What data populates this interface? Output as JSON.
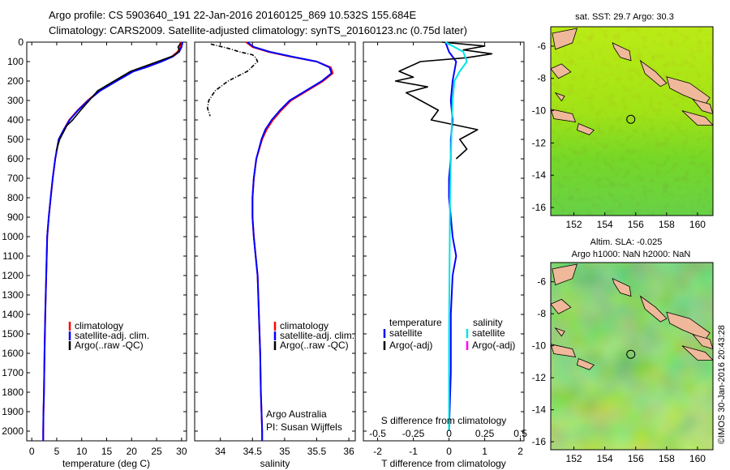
{
  "header": {
    "title_line1": "Argo profile: CS 5903640_191 22-Jan-2016 20160125_869 10.532S 155.684E",
    "title_line2": "Climatology: CARS2009. Satellite-adjusted climatology: synTS_20160123.nc (0.75d later)"
  },
  "credit": "©IMOS 30-Jan-2016 20:43:28",
  "colors": {
    "climatology": "#ff0000",
    "satellite": "#0000ff",
    "argo": "#000000",
    "salinity_satellite": "#00e5e5",
    "salinity_argo": "#ff00ff",
    "land": "#f0b89a"
  },
  "chart_data": [
    {
      "type": "line",
      "name": "temperature-profile",
      "xlabel": "temperature (deg C)",
      "ylabel": "",
      "xlim": [
        -1,
        31
      ],
      "ylim": [
        2050,
        0
      ],
      "xticks": [
        0,
        5,
        10,
        15,
        20,
        25,
        30
      ],
      "yticks": [
        0,
        100,
        200,
        300,
        400,
        500,
        600,
        700,
        800,
        900,
        1000,
        1100,
        1200,
        1300,
        1400,
        1500,
        1600,
        1700,
        1800,
        1900,
        2000
      ],
      "legend": [
        "climatology",
        "satellite-adj. clim.",
        "Argo(..raw -QC)"
      ],
      "legend_position": "lower-middle",
      "series": [
        {
          "name": "climatology",
          "color": "#ff0000",
          "x": [
            29.9,
            29.7,
            29.2,
            28.0,
            25.8,
            23.2,
            20.2,
            16.8,
            13.5,
            11.2,
            9.2,
            7.5,
            6.4,
            5.4,
            4.7,
            4.2,
            3.8,
            3.4,
            3.1,
            2.9,
            2.7,
            2.55,
            2.45,
            2.35,
            2.3,
            2.3
          ],
          "y": [
            0,
            25,
            50,
            75,
            100,
            125,
            150,
            200,
            250,
            300,
            350,
            400,
            450,
            500,
            600,
            700,
            800,
            900,
            1000,
            1200,
            1400,
            1600,
            1800,
            1900,
            2000,
            2050
          ]
        },
        {
          "name": "satellite-adj. clim.",
          "color": "#0000ff",
          "x": [
            30.2,
            30.0,
            29.5,
            28.2,
            26.0,
            23.4,
            20.4,
            17.0,
            13.7,
            11.3,
            9.3,
            7.6,
            6.4,
            5.4,
            4.7,
            4.2,
            3.8,
            3.4,
            3.1,
            2.9,
            2.7,
            2.55,
            2.45,
            2.35,
            2.3,
            2.3
          ],
          "y": [
            0,
            25,
            50,
            75,
            100,
            125,
            150,
            200,
            250,
            300,
            350,
            400,
            450,
            500,
            600,
            700,
            800,
            900,
            1000,
            1200,
            1400,
            1600,
            1800,
            1900,
            2000,
            2050
          ]
        },
        {
          "name": "Argo(..raw -QC)",
          "color": "#000000",
          "x": [
            29.8,
            29.3,
            29.6,
            28.4,
            25.2,
            22.5,
            19.8,
            16.5,
            13.2,
            11.5,
            9.8,
            8.2,
            7.0,
            5.6,
            4.9
          ],
          "y": [
            5,
            25,
            45,
            70,
            100,
            125,
            150,
            200,
            250,
            300,
            350,
            400,
            430,
            500,
            560
          ]
        }
      ]
    },
    {
      "type": "line",
      "name": "salinity-profile",
      "xlabel": "salinity",
      "ylabel": "",
      "xlim": [
        33.6,
        36.1
      ],
      "ylim": [
        2050,
        0
      ],
      "xticks": [
        34,
        34.5,
        35,
        35.5,
        36
      ],
      "legend": [
        "climatology",
        "satellite-adj. clim.",
        "Argo(..raw -QC)"
      ],
      "legend_position": "lower-middle",
      "annotation_lines": [
        "Argo Australia",
        "PI: Susan Wijffels"
      ],
      "series": [
        {
          "name": "climatology",
          "color": "#ff0000",
          "x": [
            34.4,
            34.5,
            34.75,
            35.1,
            35.5,
            35.72,
            35.75,
            35.6,
            35.35,
            35.1,
            34.95,
            34.82,
            34.72,
            34.65,
            34.56,
            34.52,
            34.5,
            34.5,
            34.52,
            34.55,
            34.58,
            34.6,
            34.62,
            34.63,
            34.64,
            34.65,
            34.65
          ],
          "y": [
            0,
            25,
            50,
            75,
            100,
            130,
            160,
            200,
            250,
            300,
            350,
            400,
            450,
            500,
            600,
            700,
            800,
            900,
            1000,
            1100,
            1200,
            1400,
            1600,
            1800,
            1900,
            2000,
            2050
          ]
        },
        {
          "name": "satellite-adj. clim.",
          "color": "#0000ff",
          "x": [
            34.42,
            34.52,
            34.77,
            35.12,
            35.5,
            35.7,
            35.73,
            35.58,
            35.33,
            35.08,
            34.93,
            34.8,
            34.7,
            34.64,
            34.56,
            34.52,
            34.5,
            34.5,
            34.52,
            34.55,
            34.58,
            34.6,
            34.62,
            34.63,
            34.64,
            34.65,
            34.65
          ],
          "y": [
            0,
            25,
            50,
            75,
            100,
            130,
            160,
            200,
            250,
            300,
            350,
            400,
            450,
            500,
            600,
            700,
            800,
            900,
            1000,
            1100,
            1200,
            1400,
            1600,
            1800,
            1900,
            2000,
            2050
          ]
        },
        {
          "name": "Argo(..raw -QC)",
          "color": "#000000",
          "dashed": true,
          "x": [
            33.85,
            34.1,
            34.3,
            34.5,
            34.55,
            34.58,
            34.42,
            34.12,
            33.92,
            33.82,
            33.8,
            33.84
          ],
          "y": [
            10,
            30,
            50,
            65,
            80,
            100,
            150,
            200,
            250,
            300,
            340,
            380
          ]
        }
      ]
    },
    {
      "type": "line",
      "name": "difference-profile",
      "xlabel": "T difference from climatology",
      "top_axis_label": "S difference from climatology",
      "xlim": [
        -2.4,
        2.1
      ],
      "ylim": [
        2050,
        0
      ],
      "xticks": [
        -2,
        -1,
        0,
        1,
        2
      ],
      "top_ticks": [
        "-0.5",
        "-0.25",
        "0",
        "0.25",
        "0.5"
      ],
      "top_tick_values": [
        -2,
        -1,
        0,
        1,
        2
      ],
      "legend_headers": [
        "temperature",
        "salinity"
      ],
      "legend": [
        "satellite",
        "Argo(-adj)",
        "satellite",
        "Argo(-adj)"
      ],
      "legend_position": "lower-middle",
      "series": [
        {
          "name": "satellite",
          "group": "temperature",
          "color": "#0000ff",
          "x": [
            -0.1,
            0.0,
            0.2,
            0.1,
            0.05,
            0.1,
            0.05,
            0.05,
            0.0,
            0.0,
            0.05,
            0.1,
            0.2,
            0.1,
            0.05,
            0.05,
            0.0
          ],
          "y": [
            0,
            50,
            100,
            200,
            300,
            400,
            500,
            600,
            700,
            800,
            900,
            1000,
            1100,
            1200,
            1400,
            1700,
            2000
          ]
        },
        {
          "name": "Argo(-adj)",
          "group": "temperature",
          "color": "#000000",
          "x": [
            -0.2,
            1.0,
            0.4,
            1.2,
            0.5,
            -0.8,
            -1.4,
            -1.0,
            -1.5,
            -0.6,
            -1.2,
            -0.8,
            -0.3,
            -0.5,
            0.8,
            0.3,
            0.5,
            0.2
          ],
          "y": [
            0,
            20,
            40,
            60,
            80,
            100,
            150,
            180,
            200,
            230,
            260,
            300,
            350,
            400,
            450,
            500,
            550,
            600
          ]
        },
        {
          "name": "satellite",
          "group": "salinity",
          "color": "#00e5e5",
          "x": [
            -0.1,
            0.4,
            0.5,
            0.3,
            0.15,
            0.1,
            0.08,
            0.05,
            0.03,
            0.02,
            0.0,
            0.0
          ],
          "y": [
            0,
            50,
            100,
            150,
            200,
            300,
            400,
            600,
            800,
            1000,
            1500,
            2000
          ]
        },
        {
          "name": "Argo(-adj)",
          "group": "salinity",
          "color": "#ff00ff",
          "x": [],
          "y": []
        }
      ]
    },
    {
      "type": "heatmap",
      "name": "sst-map",
      "title": "sat. SST: 29.7 Argo: 30.3",
      "xlim": [
        150.5,
        161
      ],
      "ylim": [
        -16.5,
        -4.8
      ],
      "xticks": [
        152,
        154,
        156,
        158,
        160
      ],
      "yticks": [
        -6,
        -8,
        -10,
        -12,
        -14,
        -16
      ],
      "marker": {
        "lon": 155.684,
        "lat": -10.532
      }
    },
    {
      "type": "heatmap",
      "name": "sla-map",
      "title_line1": "Altim. SLA: -0.025",
      "title_line2": "Argo h1000: NaN h2000: NaN",
      "xlim": [
        150.5,
        161
      ],
      "ylim": [
        -16.5,
        -4.8
      ],
      "xticks": [
        152,
        154,
        156,
        158,
        160
      ],
      "yticks": [
        -6,
        -8,
        -10,
        -12,
        -14,
        -16
      ],
      "marker": {
        "lon": 155.684,
        "lat": -10.532
      }
    }
  ]
}
